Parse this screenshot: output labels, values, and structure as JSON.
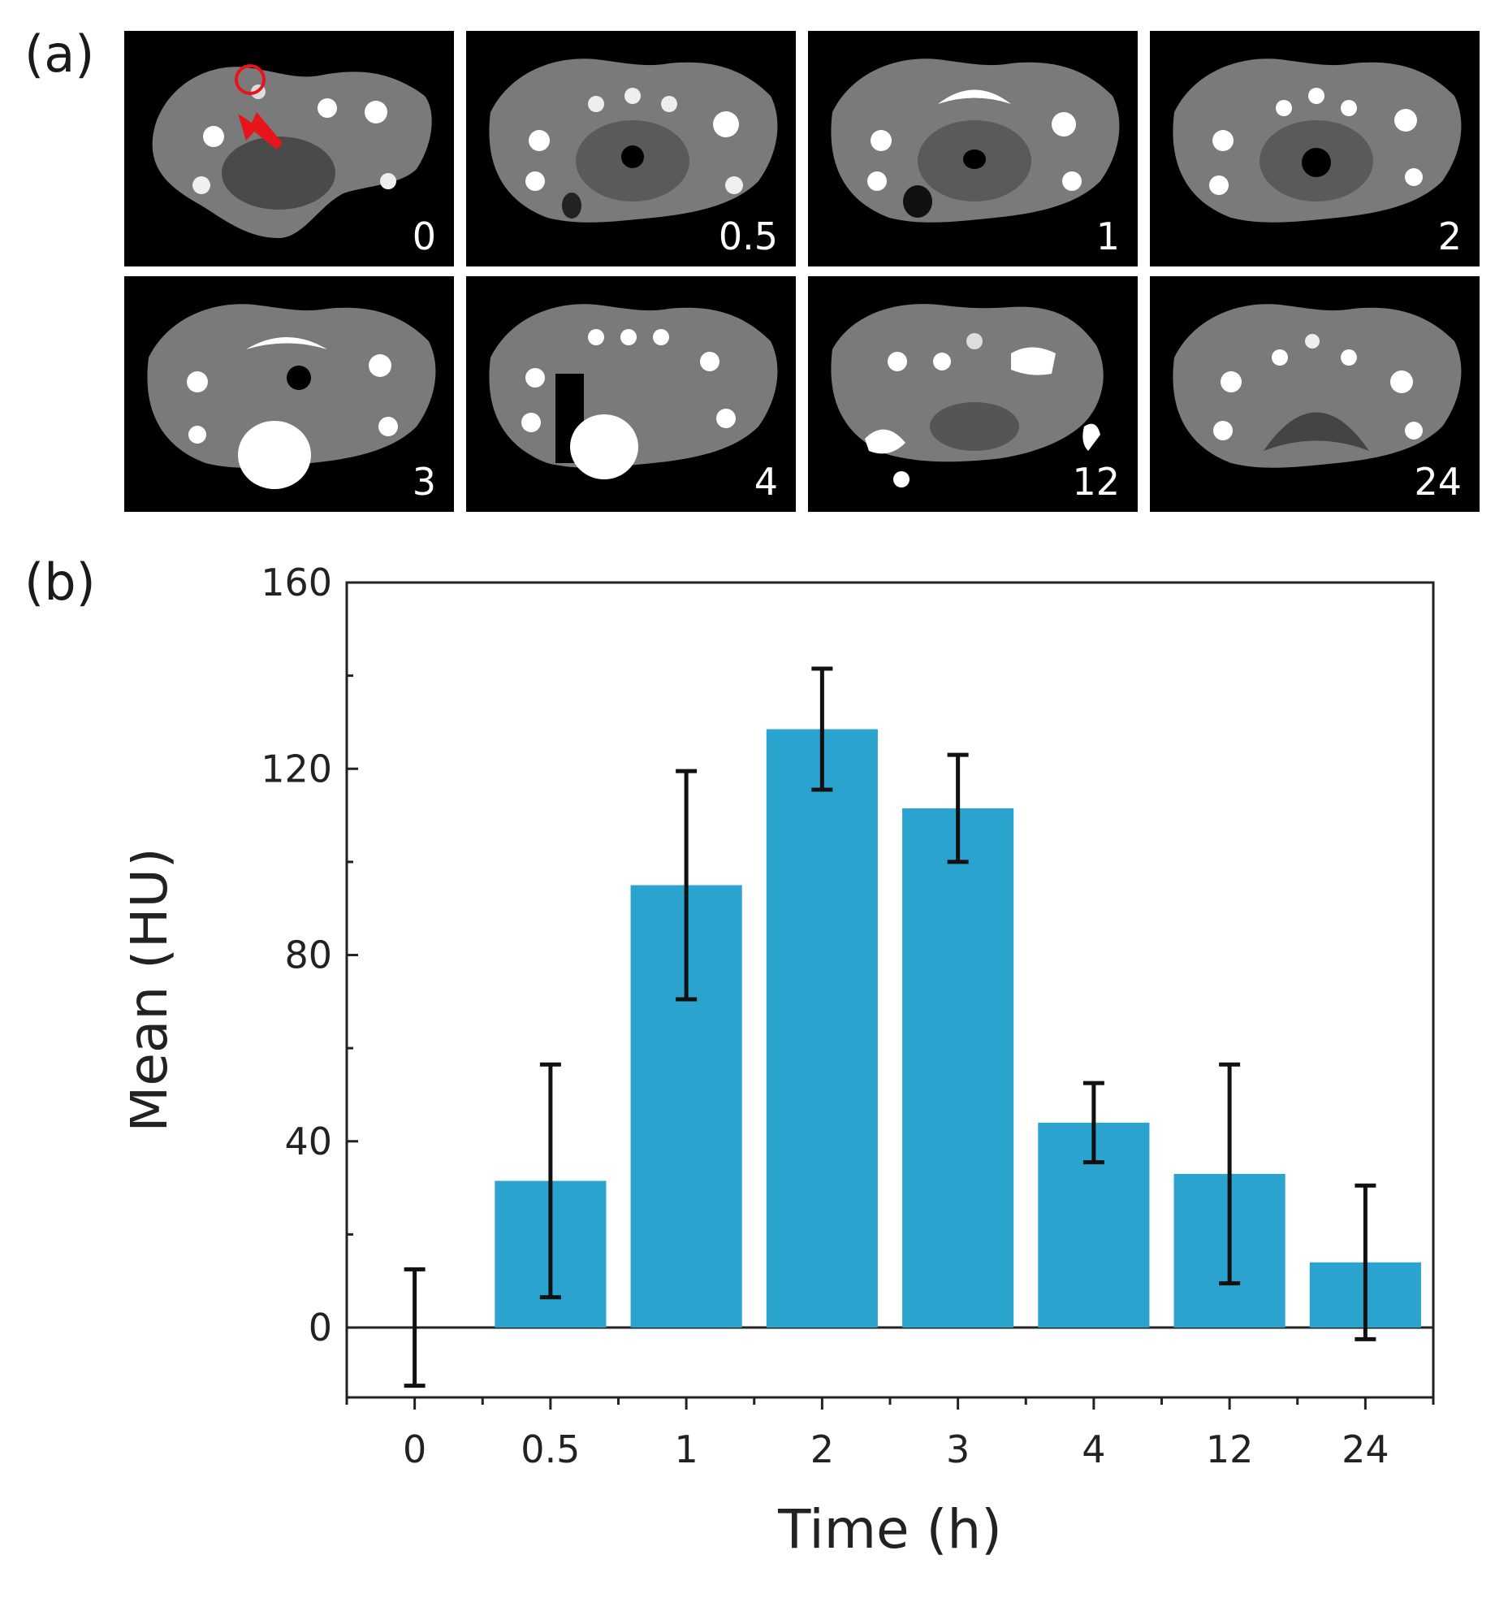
{
  "figure": {
    "panel_a_label": "(a)",
    "panel_b_label": "(b)"
  },
  "ct_panels": [
    {
      "time_label": "0",
      "has_roi_marker": true
    },
    {
      "time_label": "0.5"
    },
    {
      "time_label": "1"
    },
    {
      "time_label": "2"
    },
    {
      "time_label": "3"
    },
    {
      "time_label": "4"
    },
    {
      "time_label": "12"
    },
    {
      "time_label": "24"
    }
  ],
  "colors": {
    "bar": "#2BA3CF",
    "roi_marker": "#E8141B",
    "axis": "#222222"
  },
  "chart_data": {
    "type": "bar",
    "title": "",
    "xlabel": "Time (h)",
    "ylabel": "Mean (HU)",
    "categories": [
      "0",
      "0.5",
      "1",
      "2",
      "3",
      "4",
      "12",
      "24"
    ],
    "values": [
      0,
      31.5,
      95,
      128.5,
      111.5,
      44,
      33,
      14
    ],
    "error": [
      12.5,
      25,
      24.5,
      13,
      11.5,
      8.5,
      23.5,
      16.5
    ],
    "ylim": [
      -15,
      160
    ],
    "yticks": [
      "0",
      "40",
      "80",
      "120",
      "160"
    ],
    "ytick_values": [
      0,
      40,
      80,
      120,
      160
    ],
    "zero_line": true
  }
}
